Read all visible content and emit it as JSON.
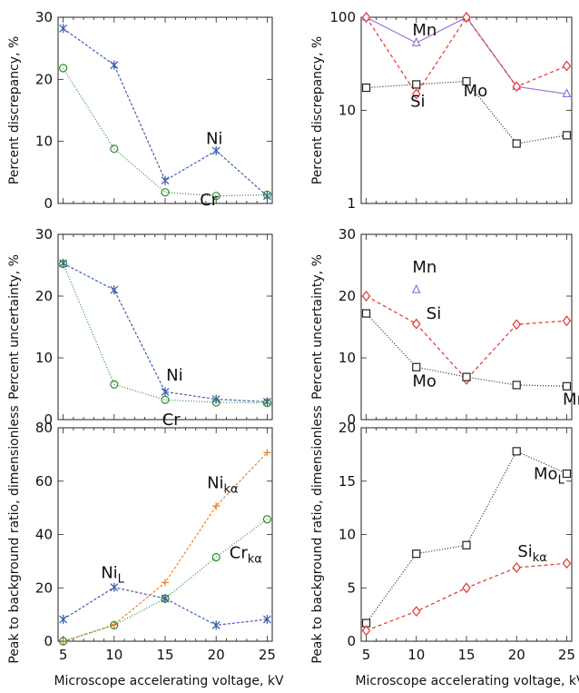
{
  "chart_data": [
    {
      "id": "disc-left",
      "type": "line",
      "ylabel": "Percent discrepancy, %",
      "xlabel": "",
      "x": [
        5,
        10,
        15,
        20,
        25
      ],
      "xlim": [
        4.5,
        25.5
      ],
      "ylim": [
        0,
        30
      ],
      "yticks": [
        0,
        10,
        20,
        30
      ],
      "xticks": [],
      "yscale": "linear",
      "series": [
        {
          "name": "Ni",
          "color": "#3f5fb0",
          "marker": "asterisk",
          "dash": "3,2",
          "values": [
            28.2,
            22.3,
            3.7,
            8.5,
            1.2
          ]
        },
        {
          "name": "Cr",
          "color": "#2e8b2e",
          "marker": "circle",
          "dash": "1,2",
          "values": [
            21.8,
            8.8,
            1.8,
            1.2,
            1.4
          ]
        }
      ],
      "annotations": [
        {
          "text": "Ni",
          "x": 19,
          "y": 9.6
        },
        {
          "text": "Cr",
          "x": 18.4,
          "y": -0.3
        }
      ]
    },
    {
      "id": "disc-right",
      "type": "line",
      "ylabel": "Percent discrepancy, %",
      "xlabel": "",
      "x": [
        5,
        10,
        15,
        20,
        25
      ],
      "xlim": [
        4.5,
        25.5
      ],
      "ylim": [
        1,
        100
      ],
      "yticks": [
        1,
        10,
        100
      ],
      "xticks": [],
      "yscale": "log",
      "series": [
        {
          "name": "Mn",
          "color": "#9a70d8",
          "marker": "triangle",
          "dash": "",
          "values": [
            100,
            53,
            100,
            18,
            15
          ]
        },
        {
          "name": "Si",
          "color": "#e3342f",
          "marker": "diamond",
          "dash": "4,3",
          "values": [
            100,
            15,
            100,
            18,
            30
          ]
        },
        {
          "name": "Mo",
          "color": "#222222",
          "marker": "square",
          "dash": "1,2",
          "values": [
            17.5,
            19,
            20.5,
            4.4,
            5.4
          ]
        }
      ],
      "annotations": [
        {
          "text": "Mn",
          "x": 9.6,
          "y": 64
        },
        {
          "text": "Si",
          "x": 9.4,
          "y": 11
        },
        {
          "text": "Mo",
          "x": 14.7,
          "y": 14.2
        }
      ]
    },
    {
      "id": "unc-left",
      "type": "line",
      "ylabel": "Percent uncertainty, %",
      "xlabel": "",
      "x": [
        5,
        10,
        15,
        20,
        25
      ],
      "xlim": [
        4.5,
        25.5
      ],
      "ylim": [
        0,
        30
      ],
      "yticks": [
        0,
        10,
        20,
        30
      ],
      "xticks": [],
      "yscale": "linear",
      "series": [
        {
          "name": "Ni",
          "color": "#3f5fb0",
          "marker": "asterisk",
          "dash": "3,2",
          "values": [
            25.3,
            21.0,
            4.5,
            3.3,
            2.9
          ]
        },
        {
          "name": "Cr",
          "color": "#2e8b2e",
          "marker": "circle",
          "dash": "1,2",
          "values": [
            25.2,
            5.7,
            3.2,
            2.8,
            2.7
          ]
        }
      ],
      "annotations": [
        {
          "text": "Ni",
          "x": 15.1,
          "y": 6.3
        },
        {
          "text": "Cr",
          "x": 14.7,
          "y": -0.9
        }
      ]
    },
    {
      "id": "unc-right",
      "type": "line",
      "ylabel": "Percent uncertainty, %",
      "xlabel": "",
      "x": [
        5,
        10,
        15,
        20,
        25
      ],
      "xlim": [
        4.5,
        25.5
      ],
      "ylim": [
        0,
        30
      ],
      "yticks": [
        0,
        10,
        20,
        30
      ],
      "xticks": [],
      "yscale": "linear",
      "series": [
        {
          "name": "Mn",
          "color": "#9a70d8",
          "marker": "triangle",
          "dash": "",
          "values": [
            null,
            21,
            null,
            null,
            null
          ]
        },
        {
          "name": "Si",
          "color": "#e3342f",
          "marker": "diamond",
          "dash": "4,3",
          "values": [
            20,
            15.5,
            6.5,
            15.4,
            16
          ]
        },
        {
          "name": "Mo",
          "color": "#222222",
          "marker": "square",
          "dash": "1,2",
          "values": [
            17.2,
            8.5,
            6.9,
            5.6,
            5.4
          ]
        }
      ],
      "annotations": [
        {
          "text": "Mn",
          "x": 9.6,
          "y": 23.8
        },
        {
          "text": "Si",
          "x": 11,
          "y": 16.3
        },
        {
          "text": "Mo",
          "x": 9.6,
          "y": 5.4
        },
        {
          "text": "Mn",
          "x": 24.6,
          "y": 2.4
        }
      ]
    },
    {
      "id": "pb-left",
      "type": "line",
      "ylabel": "Peak to background ratio, dimensionless",
      "xlabel": "Microscope accelerating voltage, kV",
      "x": [
        5,
        10,
        15,
        20,
        25
      ],
      "xlim": [
        4.5,
        25.5
      ],
      "ylim": [
        0,
        80
      ],
      "yticks": [
        0,
        20,
        40,
        60,
        80
      ],
      "xticks": [
        5,
        10,
        15,
        20,
        25
      ],
      "yscale": "linear",
      "series": [
        {
          "name": "Ni_L",
          "color": "#3f5fb0",
          "marker": "asterisk",
          "dash": "3,2",
          "values": [
            8.2,
            20.2,
            16.0,
            6.0,
            8.2
          ]
        },
        {
          "name": "Ni_kα",
          "color": "#e8862a",
          "marker": "plus",
          "dash": "3,2",
          "values": [
            -0.2,
            6.2,
            22.0,
            50.7,
            70.7
          ]
        },
        {
          "name": "Cr_kα",
          "color": "#2e8b2e",
          "marker": "circle",
          "dash": "1,2",
          "values": [
            0,
            6,
            16,
            31.5,
            45.7
          ]
        }
      ],
      "annotations": [
        {
          "text": "Ni",
          "sub": "kα",
          "x": 19.1,
          "y": 57.4
        },
        {
          "text": "Ni",
          "sub": "L",
          "x": 8.7,
          "y": 23.7
        },
        {
          "text": "Cr",
          "sub": "kα",
          "x": 21.3,
          "y": 31.2
        }
      ]
    },
    {
      "id": "pb-right",
      "type": "line",
      "ylabel": "Peak to background ratio, dimensionless",
      "xlabel": "Microscope accelerating voltage, kV",
      "x": [
        5,
        10,
        15,
        20,
        25
      ],
      "xlim": [
        4.5,
        25.5
      ],
      "ylim": [
        0,
        20
      ],
      "yticks": [
        0,
        5,
        10,
        15,
        20
      ],
      "xticks": [
        5,
        10,
        15,
        20,
        25
      ],
      "yscale": "linear",
      "series": [
        {
          "name": "Mo_L",
          "color": "#222222",
          "marker": "square",
          "dash": "1,2",
          "values": [
            1.7,
            8.2,
            9.0,
            17.8,
            15.7
          ]
        },
        {
          "name": "Si_kα",
          "color": "#e3342f",
          "marker": "diamond",
          "dash": "4,3",
          "values": [
            1.0,
            2.8,
            5.0,
            6.9,
            7.3
          ]
        }
      ],
      "annotations": [
        {
          "text": "Mo",
          "sub": "L",
          "x": 21.7,
          "y": 15.2
        },
        {
          "text": "Si",
          "sub": "kα",
          "x": 20.1,
          "y": 7.9
        }
      ]
    }
  ]
}
